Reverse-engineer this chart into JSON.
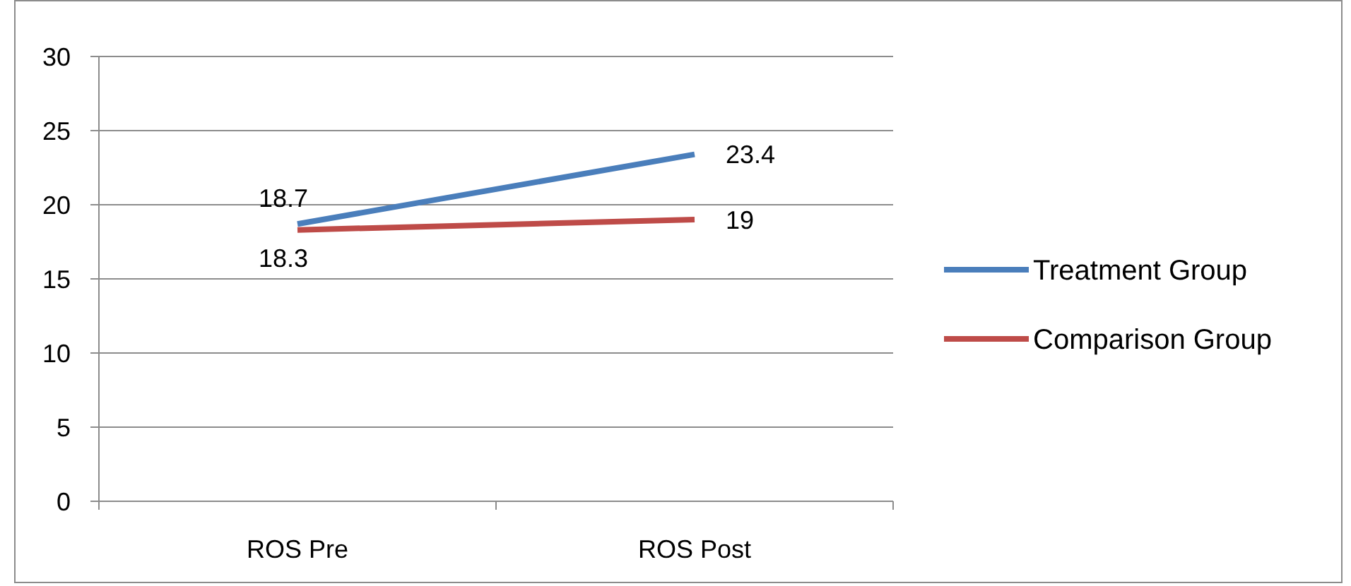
{
  "chart_data": {
    "type": "line",
    "categories": [
      "ROS Pre",
      "ROS Post"
    ],
    "series": [
      {
        "name": "Treatment Group",
        "color": "#4a7ebb",
        "values": [
          18.7,
          23.4
        ]
      },
      {
        "name": "Comparison Group",
        "color": "#be4b48",
        "values": [
          18.3,
          19
        ]
      }
    ],
    "ylim": [
      0,
      30
    ],
    "yticks": [
      0,
      5,
      10,
      15,
      20,
      25,
      30
    ],
    "grid": "y",
    "legend": "right",
    "data_labels": true,
    "marker": "none",
    "line_style": "solid"
  }
}
